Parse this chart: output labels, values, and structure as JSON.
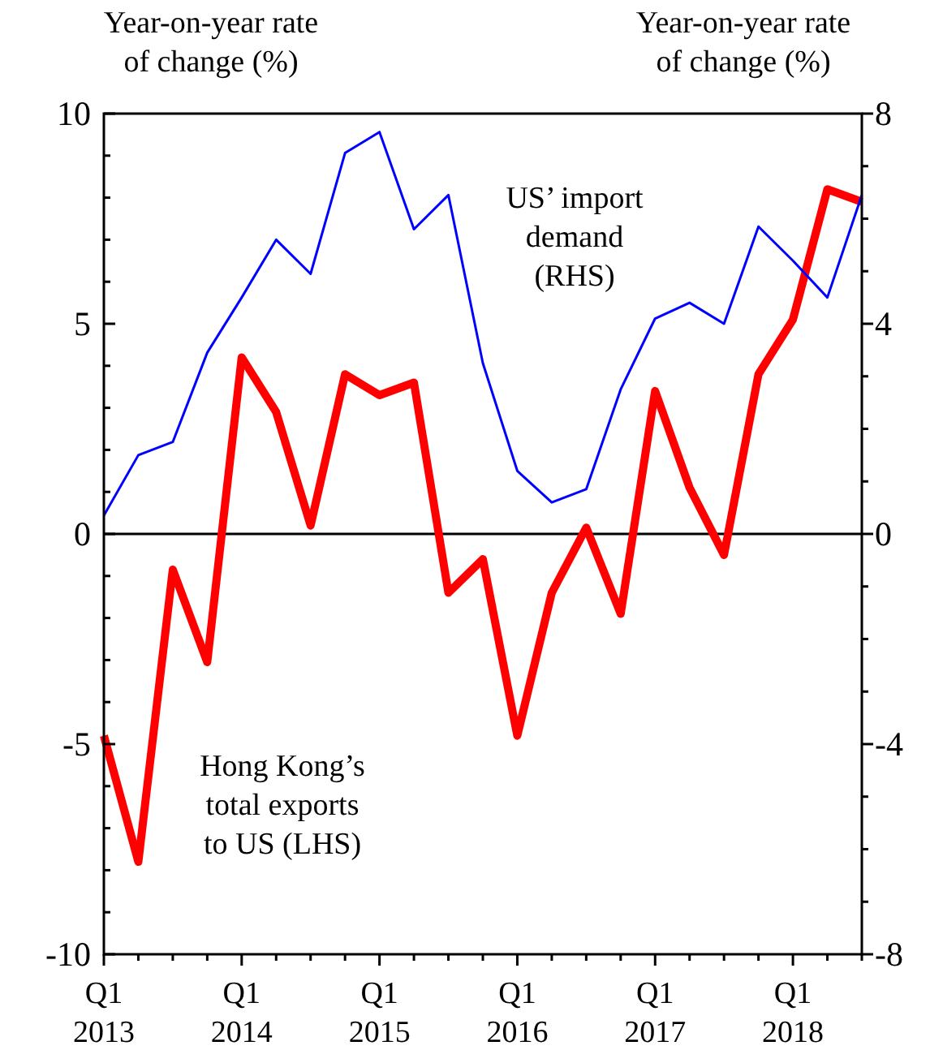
{
  "chart_data": {
    "type": "line",
    "ylabel": "Year-on-year rate of change (%)",
    "y2label": "Year-on-year rate of change (%)",
    "categories": [
      "Q1 2013",
      null,
      null,
      null,
      "Q1 2014",
      null,
      null,
      null,
      "Q1 2015",
      null,
      null,
      null,
      "Q1 2016",
      null,
      null,
      null,
      "Q1 2017",
      null,
      null,
      null,
      "Q1 2018",
      null,
      null
    ],
    "ylim": [
      -10,
      10
    ],
    "yticks": [
      -10,
      {
        "value": -9,
        "label": null
      },
      {
        "value": -8,
        "label": null
      },
      {
        "value": -7,
        "label": null
      },
      {
        "value": -6,
        "label": null
      },
      -5,
      {
        "value": -4,
        "label": null
      },
      {
        "value": -3,
        "label": null
      },
      {
        "value": -2,
        "label": null
      },
      {
        "value": -1,
        "label": null
      },
      0,
      {
        "value": 1,
        "label": null
      },
      {
        "value": 2,
        "label": null
      },
      {
        "value": 3,
        "label": null
      },
      {
        "value": 4,
        "label": null
      },
      5,
      {
        "value": 6,
        "label": null
      },
      {
        "value": 7,
        "label": null
      },
      {
        "value": 8,
        "label": null
      },
      {
        "value": 9,
        "label": null
      },
      10
    ],
    "y2lim": [
      -8,
      8
    ],
    "y2ticks": [
      -8,
      {
        "value": -7,
        "label": null
      },
      {
        "value": -6,
        "label": null
      },
      {
        "value": -5,
        "label": null
      },
      -4,
      {
        "value": -3,
        "label": null
      },
      {
        "value": -2,
        "label": null
      },
      {
        "value": -1,
        "label": null
      },
      0,
      {
        "value": 1,
        "label": null
      },
      {
        "value": 2,
        "label": null
      },
      {
        "value": 3,
        "label": null
      },
      4,
      {
        "value": 5,
        "label": null
      },
      {
        "value": 6,
        "label": null
      },
      {
        "value": 7,
        "label": null
      },
      8
    ],
    "ref_lines": [
      {
        "axis": "y",
        "value": 0,
        "color": "#000000"
      }
    ],
    "marker": "none",
    "line_style": "solid",
    "series": [
      {
        "name": "Hong Kong’s total exports to US (LHS)",
        "color": "#ff0000",
        "values": [
          -4.8,
          -7.8,
          -0.85,
          -3.05,
          4.2,
          2.9,
          0.2,
          3.8,
          3.3,
          3.6,
          -1.4,
          -0.6,
          -4.8,
          -1.4,
          0.15,
          -1.9,
          3.4,
          1.1,
          -0.5,
          3.8,
          5.1,
          8.2,
          7.9
        ]
      },
      {
        "name": "US’ import demand (RHS)",
        "color": "#0000ff",
        "axis": "y2",
        "values": [
          0.35,
          1.5,
          1.75,
          3.45,
          4.5,
          5.6,
          4.95,
          7.25,
          7.65,
          5.8,
          6.45,
          3.25,
          1.2,
          0.6,
          0.85,
          2.75,
          4.1,
          4.4,
          4.0,
          5.85,
          5.2,
          4.5,
          6.45
        ]
      }
    ]
  }
}
